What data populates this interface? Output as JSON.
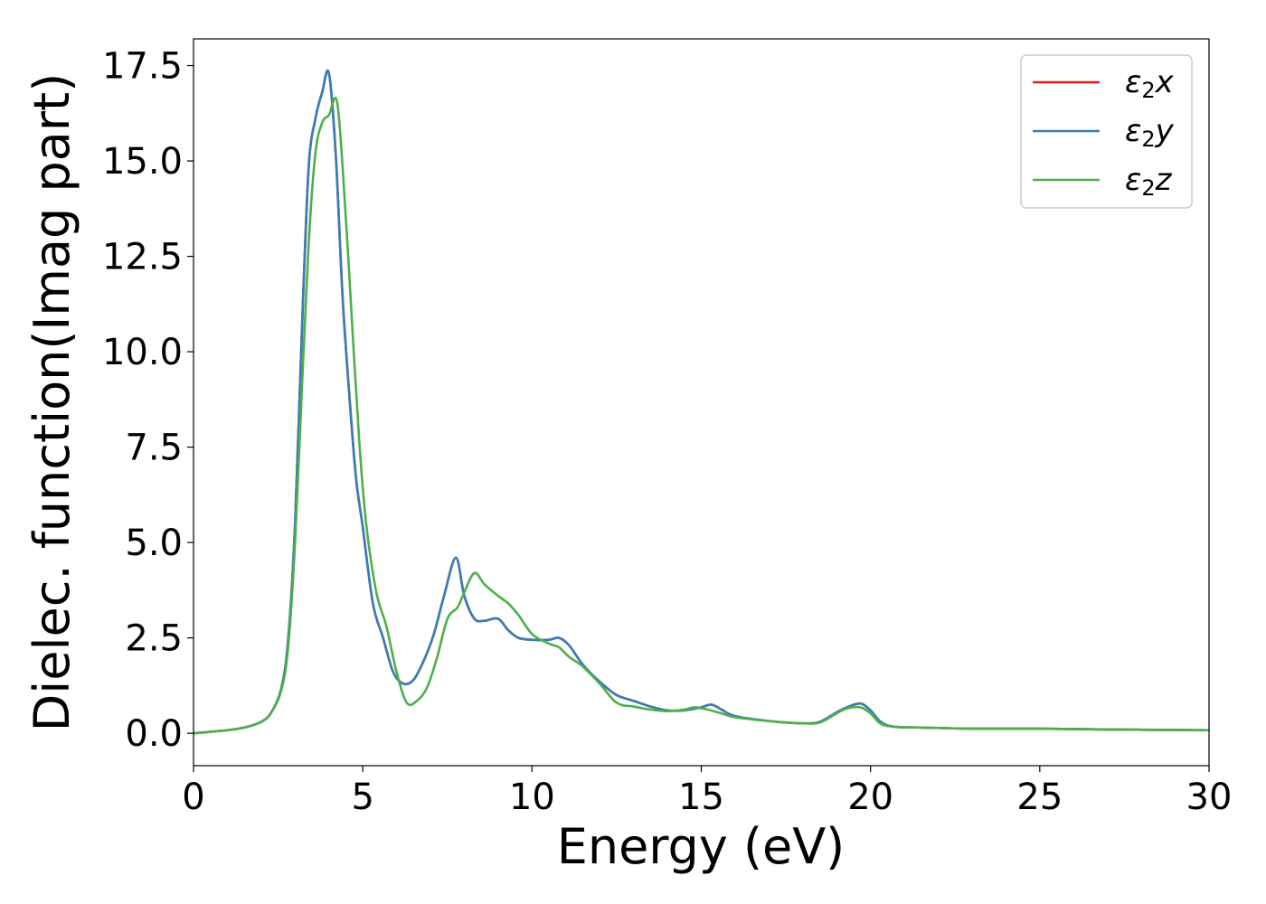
{
  "chart_data": {
    "type": "line",
    "xlabel": "Energy (eV)",
    "ylabel": "Dielec. function(Imag part)",
    "xlim": [
      0,
      30
    ],
    "ylim": [
      -0.85,
      18.2
    ],
    "xticks": [
      0,
      5,
      10,
      15,
      20,
      25,
      30
    ],
    "xtick_labels": [
      "0",
      "5",
      "10",
      "15",
      "20",
      "25",
      "30"
    ],
    "yticks": [
      0.0,
      2.5,
      5.0,
      7.5,
      10.0,
      12.5,
      15.0,
      17.5
    ],
    "ytick_labels": [
      "0.0",
      "2.5",
      "5.0",
      "7.5",
      "10.0",
      "12.5",
      "15.0",
      "17.5"
    ],
    "grid": false,
    "legend_position": "top-right",
    "series": [
      {
        "name": "ε2x",
        "color": "#e41a1c",
        "x": [
          0,
          1,
          1.5,
          2,
          2.3,
          2.6,
          2.8,
          3.0,
          3.2,
          3.4,
          3.6,
          3.8,
          4.0,
          4.2,
          4.4,
          4.6,
          4.8,
          5.0,
          5.3,
          5.6,
          5.9,
          6.2,
          6.5,
          6.8,
          7.1,
          7.4,
          7.75,
          8.0,
          8.3,
          8.6,
          9.0,
          9.3,
          9.6,
          10.0,
          10.5,
          10.8,
          11.1,
          11.5,
          12.0,
          12.5,
          13.0,
          13.5,
          14.0,
          14.5,
          15.0,
          15.3,
          15.6,
          16.0,
          17.0,
          18.0,
          18.5,
          19.0,
          19.3,
          19.7,
          20.0,
          20.3,
          20.7,
          21.5,
          23.0,
          25.0,
          27.0,
          30.0
        ],
        "values": [
          0.0,
          0.08,
          0.15,
          0.3,
          0.55,
          1.2,
          2.5,
          5.5,
          10.5,
          14.8,
          16.1,
          16.8,
          17.3,
          15.2,
          11.5,
          8.9,
          6.7,
          5.4,
          3.4,
          2.5,
          1.6,
          1.3,
          1.4,
          1.9,
          2.6,
          3.6,
          4.6,
          3.6,
          3.0,
          2.95,
          3.0,
          2.7,
          2.5,
          2.45,
          2.45,
          2.5,
          2.3,
          1.8,
          1.35,
          1.0,
          0.85,
          0.7,
          0.6,
          0.6,
          0.68,
          0.75,
          0.62,
          0.45,
          0.32,
          0.26,
          0.3,
          0.55,
          0.68,
          0.78,
          0.6,
          0.3,
          0.17,
          0.15,
          0.12,
          0.12,
          0.1,
          0.08
        ]
      },
      {
        "name": "ε2y",
        "color": "#377eb8",
        "x": [
          0,
          1,
          1.5,
          2,
          2.3,
          2.6,
          2.8,
          3.0,
          3.2,
          3.4,
          3.6,
          3.8,
          4.0,
          4.2,
          4.4,
          4.6,
          4.8,
          5.0,
          5.3,
          5.6,
          5.9,
          6.2,
          6.5,
          6.8,
          7.1,
          7.4,
          7.75,
          8.0,
          8.3,
          8.6,
          9.0,
          9.3,
          9.6,
          10.0,
          10.5,
          10.8,
          11.1,
          11.5,
          12.0,
          12.5,
          13.0,
          13.5,
          14.0,
          14.5,
          15.0,
          15.3,
          15.6,
          16.0,
          17.0,
          18.0,
          18.5,
          19.0,
          19.3,
          19.7,
          20.0,
          20.3,
          20.7,
          21.5,
          23.0,
          25.0,
          27.0,
          30.0
        ],
        "values": [
          0.0,
          0.08,
          0.15,
          0.3,
          0.55,
          1.2,
          2.5,
          5.5,
          10.5,
          14.8,
          16.1,
          16.8,
          17.3,
          15.2,
          11.5,
          8.9,
          6.7,
          5.4,
          3.4,
          2.5,
          1.6,
          1.3,
          1.4,
          1.9,
          2.6,
          3.6,
          4.6,
          3.6,
          3.0,
          2.95,
          3.0,
          2.7,
          2.5,
          2.45,
          2.45,
          2.5,
          2.3,
          1.8,
          1.35,
          1.0,
          0.85,
          0.7,
          0.6,
          0.6,
          0.68,
          0.75,
          0.62,
          0.45,
          0.32,
          0.26,
          0.3,
          0.55,
          0.68,
          0.78,
          0.6,
          0.3,
          0.17,
          0.15,
          0.12,
          0.12,
          0.1,
          0.08
        ]
      },
      {
        "name": "ε2z",
        "color": "#4daf4a",
        "x": [
          0,
          1,
          1.5,
          2,
          2.3,
          2.6,
          2.8,
          3.0,
          3.2,
          3.4,
          3.6,
          3.8,
          4.0,
          4.25,
          4.5,
          4.7,
          4.9,
          5.1,
          5.4,
          5.7,
          6.0,
          6.3,
          6.6,
          6.9,
          7.2,
          7.5,
          7.8,
          8.0,
          8.3,
          8.6,
          9.0,
          9.3,
          9.6,
          10.0,
          10.5,
          10.8,
          11.1,
          11.5,
          12.0,
          12.5,
          13.0,
          13.5,
          14.0,
          14.5,
          14.8,
          15.2,
          15.6,
          16.0,
          17.0,
          18.0,
          18.5,
          19.0,
          19.3,
          19.7,
          20.0,
          20.3,
          20.7,
          21.5,
          23.0,
          25.0,
          27.0,
          30.0
        ],
        "values": [
          0.0,
          0.08,
          0.15,
          0.3,
          0.55,
          1.15,
          2.3,
          5.0,
          9.0,
          12.8,
          15.2,
          16.0,
          16.2,
          16.5,
          13.5,
          10.5,
          7.6,
          5.5,
          3.7,
          2.8,
          1.6,
          0.8,
          0.85,
          1.2,
          2.0,
          3.0,
          3.3,
          3.7,
          4.2,
          3.9,
          3.6,
          3.4,
          3.1,
          2.6,
          2.35,
          2.25,
          2.0,
          1.75,
          1.3,
          0.8,
          0.7,
          0.62,
          0.58,
          0.62,
          0.68,
          0.62,
          0.52,
          0.42,
          0.32,
          0.26,
          0.28,
          0.52,
          0.65,
          0.68,
          0.52,
          0.25,
          0.17,
          0.15,
          0.12,
          0.12,
          0.1,
          0.08
        ]
      }
    ],
    "legend": [
      {
        "base": "ε",
        "sub": "2",
        "suffix": "x",
        "color": "#e41a1c"
      },
      {
        "base": "ε",
        "sub": "2",
        "suffix": "y",
        "color": "#377eb8"
      },
      {
        "base": "ε",
        "sub": "2",
        "suffix": "z",
        "color": "#4daf4a"
      }
    ]
  }
}
